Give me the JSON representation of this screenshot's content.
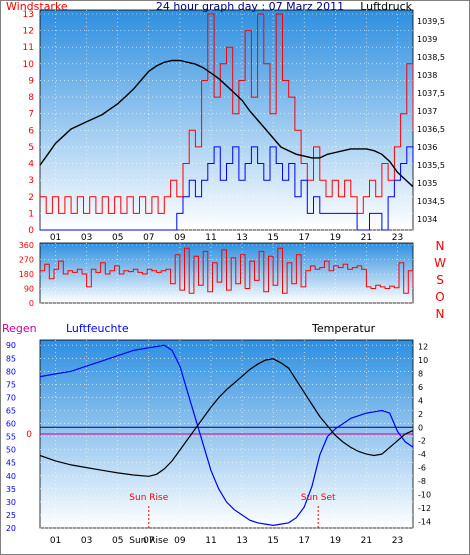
{
  "colors": {
    "red": "#ff0000",
    "blue": "#0000ff",
    "black": "#000000",
    "title": "#000080",
    "magenta": "#cc0099",
    "plot_top": "#2e8fe0",
    "plot_bottom": "#ffffff"
  },
  "chart_data": [
    {
      "type": "line",
      "title": "24 hour graph day : 07 Marz 2011",
      "left_axis_label": "Windstarke",
      "right_axis_label": "Luftdruck",
      "x_ticks": [
        "01",
        "03",
        "05",
        "07",
        "09",
        "11",
        "13",
        "15",
        "17",
        "19",
        "21",
        "23"
      ],
      "left_ticks": [
        0,
        1,
        2,
        3,
        4,
        5,
        6,
        7,
        8,
        9,
        10,
        11,
        12,
        13
      ],
      "left_range": [
        0,
        13
      ],
      "right_ticks": [
        "1034",
        "1034,5",
        "1035",
        "1035,5",
        "1036",
        "1036,5",
        "1037",
        "1037,5",
        "1038",
        "1038,5",
        "1039",
        "1039,5"
      ],
      "right_range": [
        1033.7,
        1039.8
      ],
      "pressure": {
        "x": [
          0,
          0.5,
          1,
          1.5,
          2,
          2.5,
          3,
          3.5,
          4,
          4.5,
          5,
          5.5,
          6,
          6.5,
          7,
          7.5,
          8,
          8.5,
          9,
          9.5,
          10,
          10.5,
          11,
          11.5,
          12,
          12.5,
          13,
          13.5,
          14,
          14.5,
          15,
          15.5,
          16,
          16.5,
          17,
          17.5,
          18,
          18.5,
          19,
          19.5,
          20,
          20.5,
          21,
          21.5,
          22,
          22.5,
          23,
          23.5,
          24
        ],
        "y": [
          1035.5,
          1035.8,
          1036.1,
          1036.3,
          1036.5,
          1036.6,
          1036.7,
          1036.8,
          1036.9,
          1037.05,
          1037.2,
          1037.4,
          1037.6,
          1037.85,
          1038.1,
          1038.25,
          1038.35,
          1038.4,
          1038.4,
          1038.35,
          1038.3,
          1038.2,
          1038.05,
          1037.9,
          1037.7,
          1037.5,
          1037.3,
          1037.0,
          1036.75,
          1036.5,
          1036.25,
          1036.0,
          1035.9,
          1035.8,
          1035.75,
          1035.7,
          1035.7,
          1035.8,
          1035.85,
          1035.9,
          1035.95,
          1035.95,
          1035.95,
          1035.9,
          1035.8,
          1035.6,
          1035.3,
          1035.1,
          1034.9
        ]
      },
      "wind_gust_max": {
        "x": [
          0,
          0.4,
          0.8,
          1.2,
          1.6,
          2.0,
          2.4,
          2.8,
          3.2,
          3.6,
          4.0,
          4.4,
          4.8,
          5.2,
          5.6,
          6.0,
          6.4,
          6.8,
          7.2,
          7.6,
          8.0,
          8.4,
          8.8,
          9.2,
          9.6,
          10.0,
          10.4,
          10.8,
          11.2,
          11.6,
          12.0,
          12.4,
          12.8,
          13.2,
          13.6,
          14.0,
          14.4,
          14.8,
          15.2,
          15.6,
          16.0,
          16.4,
          16.8,
          17.2,
          17.6,
          18.0,
          18.4,
          18.8,
          19.2,
          19.6,
          20.0,
          20.4,
          20.8,
          21.2,
          21.6,
          22.0,
          22.4,
          22.8,
          23.2,
          23.6,
          24.0
        ],
        "y": [
          2,
          1,
          2,
          1,
          2,
          1,
          2,
          1,
          2,
          1,
          2,
          1,
          2,
          1,
          2,
          1,
          2,
          1,
          2,
          1,
          2,
          3,
          2,
          4,
          6,
          5,
          9,
          13,
          8,
          10,
          11,
          7,
          9,
          12,
          8,
          13,
          10,
          7,
          13,
          9,
          8,
          6,
          4,
          3,
          5,
          3,
          2,
          3,
          2,
          3,
          2,
          1,
          2,
          3,
          2,
          4,
          3,
          5,
          7,
          10,
          6
        ]
      },
      "wind_mean": {
        "x": [
          0,
          0.8,
          1.6,
          2.4,
          3.2,
          4.0,
          4.8,
          5.6,
          6.4,
          7.2,
          8.0,
          8.8,
          9.2,
          9.6,
          10.0,
          10.4,
          10.8,
          11.2,
          11.6,
          12.0,
          12.4,
          12.8,
          13.2,
          13.6,
          14.0,
          14.4,
          14.8,
          15.2,
          15.6,
          16.0,
          16.4,
          16.8,
          17.2,
          17.6,
          18.0,
          18.8,
          19.6,
          20.4,
          21.2,
          22.0,
          22.4,
          22.8,
          23.2,
          23.6,
          24.0
        ],
        "y": [
          0,
          0,
          0,
          0,
          0,
          0,
          0,
          0,
          0,
          0,
          0,
          1,
          2,
          3,
          2,
          3,
          4,
          5,
          3,
          4,
          5,
          3,
          4,
          5,
          4,
          3,
          5,
          4,
          3,
          4,
          2,
          3,
          1,
          2,
          1,
          1,
          1,
          0,
          1,
          0,
          2,
          3,
          4,
          5,
          4
        ]
      }
    },
    {
      "type": "line",
      "title": "",
      "left_ticks": [
        0,
        90,
        180,
        270,
        360
      ],
      "left_range": [
        0,
        360
      ],
      "right_ticks": [
        "N",
        "W",
        "S",
        "O",
        "N"
      ],
      "x_ticks": [],
      "direction": {
        "x": [
          0,
          0.3,
          0.6,
          0.9,
          1.2,
          1.5,
          1.8,
          2.1,
          2.4,
          2.7,
          3.0,
          3.3,
          3.6,
          3.9,
          4.2,
          4.5,
          4.8,
          5.1,
          5.4,
          5.7,
          6.0,
          6.3,
          6.6,
          6.9,
          7.2,
          7.5,
          7.8,
          8.1,
          8.4,
          8.7,
          9.0,
          9.3,
          9.6,
          9.9,
          10.2,
          10.5,
          10.8,
          11.1,
          11.4,
          11.7,
          12.0,
          12.3,
          12.6,
          12.9,
          13.2,
          13.5,
          13.8,
          14.1,
          14.4,
          14.7,
          15.0,
          15.3,
          15.6,
          15.9,
          16.2,
          16.5,
          16.8,
          17.1,
          17.4,
          17.7,
          18.0,
          18.3,
          18.6,
          18.9,
          19.2,
          19.5,
          19.8,
          20.1,
          20.4,
          20.7,
          21.0,
          21.3,
          21.6,
          21.9,
          22.2,
          22.5,
          22.8,
          23.1,
          23.4,
          23.7,
          24.0
        ],
        "y": [
          200,
          240,
          150,
          210,
          260,
          180,
          200,
          190,
          210,
          180,
          100,
          210,
          190,
          250,
          180,
          200,
          230,
          180,
          200,
          195,
          210,
          190,
          180,
          210,
          200,
          190,
          200,
          210,
          120,
          300,
          80,
          340,
          60,
          290,
          110,
          320,
          70,
          250,
          130,
          330,
          80,
          280,
          120,
          300,
          90,
          260,
          140,
          320,
          70,
          290,
          110,
          340,
          60,
          250,
          120,
          300,
          100,
          200,
          230,
          210,
          220,
          260,
          200,
          230,
          220,
          240,
          210,
          220,
          230,
          210,
          100,
          90,
          110,
          100,
          90,
          105,
          95,
          250,
          60,
          200,
          100
        ]
      }
    },
    {
      "type": "line",
      "left_axis_label": "Regen",
      "series_label": "Luftfeuchte",
      "right_axis_label": "Temperatur",
      "x_ticks": [
        "01",
        "03",
        "05",
        "07",
        "09",
        "11",
        "13",
        "15",
        "17",
        "19",
        "21",
        "23"
      ],
      "left_ticks": [
        20,
        25,
        30,
        35,
        40,
        45,
        50,
        55,
        60,
        65,
        70,
        75,
        80,
        85,
        90
      ],
      "left_range": [
        20,
        92
      ],
      "right_ticks": [
        -14,
        -12,
        -10,
        -8,
        -6,
        -4,
        -2,
        0,
        2,
        4,
        6,
        8,
        10,
        12
      ],
      "right_range": [
        -15,
        13
      ],
      "rain_marker": "0",
      "sun_rise_label": "Sun Rise",
      "sun_set_label": "Sun Set",
      "sun_rise_hour": 7.0,
      "sun_set_hour": 17.9,
      "humidity": {
        "x": [
          0,
          1,
          2,
          3,
          4,
          5,
          5.5,
          6,
          6.5,
          7,
          7.5,
          8,
          8.5,
          9,
          9.5,
          10,
          10.5,
          11,
          11.5,
          12,
          12.5,
          13,
          13.5,
          14,
          14.5,
          15,
          15.5,
          16,
          16.5,
          17,
          17.5,
          18,
          18.5,
          19,
          19.5,
          20,
          20.5,
          21,
          21.5,
          22,
          22.5,
          23,
          23.5,
          24
        ],
        "y": [
          78,
          79,
          80,
          82,
          84,
          86,
          87,
          88,
          88.5,
          89,
          89.5,
          90,
          88,
          82,
          72,
          62,
          52,
          42,
          35,
          30,
          27,
          25,
          23,
          22,
          21.5,
          21,
          21.5,
          22,
          24,
          28,
          36,
          48,
          55,
          58,
          60,
          62,
          63,
          64,
          64.5,
          65,
          64,
          57,
          53,
          51
        ]
      },
      "temperature": {
        "x": [
          0,
          1,
          2,
          3,
          4,
          5,
          6,
          7,
          7.5,
          8,
          8.5,
          9,
          9.5,
          10,
          10.5,
          11,
          11.5,
          12,
          12.5,
          13,
          13.5,
          14,
          14.5,
          15,
          15.5,
          16,
          16.5,
          17,
          17.5,
          18,
          18.5,
          19,
          19.5,
          20,
          20.5,
          21,
          21.5,
          22,
          22.5,
          23,
          23.5,
          24
        ],
        "y": [
          -4.2,
          -5.0,
          -5.6,
          -6.0,
          -6.4,
          -6.8,
          -7.1,
          -7.3,
          -7.0,
          -6.2,
          -5.0,
          -3.4,
          -1.8,
          -0.2,
          1.4,
          3.0,
          4.4,
          5.6,
          6.6,
          7.6,
          8.6,
          9.4,
          10.0,
          10.2,
          9.6,
          8.8,
          7.0,
          5.2,
          3.4,
          1.6,
          0.2,
          -1.2,
          -2.2,
          -3.0,
          -3.6,
          -4.0,
          -4.2,
          -4.0,
          -3.0,
          -2.0,
          -1.0,
          -0.5
        ]
      }
    }
  ]
}
